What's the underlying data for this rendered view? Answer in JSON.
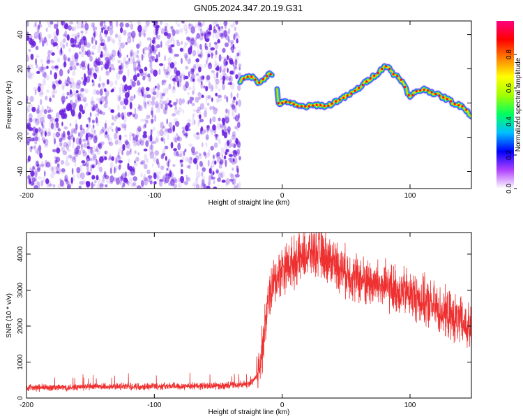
{
  "title": "GN05.2024.347.20.19.G31",
  "colors": {
    "snr_line": "#ee3030",
    "noise": "#6a1fe0",
    "frame": "#000000"
  },
  "chart_data": [
    {
      "type": "heatmap",
      "xlabel": "Height of straight line (km)",
      "ylabel": "Frequency (Hz)",
      "xlim": [
        -200,
        148
      ],
      "ylim": [
        -50,
        48
      ],
      "xticks": [
        -200,
        -100,
        0,
        100
      ],
      "yticks": [
        -40,
        -20,
        0,
        20,
        40
      ],
      "noise_region_x": [
        -200,
        -33
      ],
      "colorbar": {
        "label": "Normalized spectral amplitude",
        "range": [
          0,
          1
        ],
        "ticks": [
          "0.0",
          "0.2",
          "0.4",
          "0.6",
          "0.8"
        ],
        "colors": [
          "#ffffff",
          "#b040ff",
          "#0000ff",
          "#00c0ff",
          "#00ff60",
          "#a0ff00",
          "#ffff00",
          "#ff8000",
          "#ff0000",
          "#ff0080"
        ]
      },
      "ridge": {
        "x": [
          -33,
          -25,
          -18,
          -10,
          -5,
          -3,
          0,
          5,
          12,
          20,
          28,
          35,
          42,
          48,
          55,
          62,
          70,
          76,
          80,
          84,
          87,
          92,
          97,
          100,
          105,
          112,
          118,
          124,
          130,
          136,
          142,
          148
        ],
        "y": [
          13,
          16,
          12,
          17,
          16,
          0,
          0,
          1,
          -2,
          -2,
          -1,
          -2,
          1,
          3,
          6,
          10,
          15,
          18,
          22,
          20,
          17,
          15,
          8,
          3,
          7,
          8,
          6,
          4,
          2,
          -1,
          -2,
          -8
        ]
      }
    },
    {
      "type": "line",
      "xlabel": "Height of straight line (km)",
      "ylabel": "SNR (10 * v/v)",
      "xlim": [
        -200,
        148
      ],
      "ylim": [
        0,
        4600
      ],
      "xticks": [
        -200,
        -100,
        0,
        100
      ],
      "yticks": [
        0,
        1000,
        2000,
        3000,
        4000
      ],
      "series": [
        {
          "x": [
            -200,
            -150,
            -100,
            -50,
            -25,
            -20,
            -15,
            -10,
            -5,
            0,
            10,
            20,
            25,
            30,
            40,
            50,
            60,
            70,
            80,
            90,
            100,
            110,
            120,
            130,
            140,
            148
          ],
          "values": [
            280,
            310,
            330,
            340,
            380,
            600,
            1500,
            2900,
            3300,
            3600,
            3800,
            4000,
            4100,
            4000,
            3800,
            3500,
            3300,
            3200,
            3100,
            3000,
            2900,
            2700,
            2500,
            2300,
            2100,
            1900
          ]
        }
      ]
    }
  ]
}
